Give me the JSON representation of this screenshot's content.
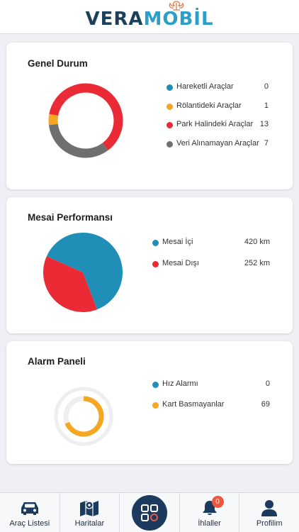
{
  "header": {
    "logo_part1": "VERA",
    "logo_part2": "MOBİL"
  },
  "general_status": {
    "title": "Genel Durum",
    "items": [
      {
        "label": "Hareketli Araçlar",
        "value": "0",
        "color": "#1f8fb8"
      },
      {
        "label": "Rölantideki Araçlar",
        "value": "1",
        "color": "#f5a623"
      },
      {
        "label": "Park Halindeki Araçlar",
        "value": "13",
        "color": "#ea2b36"
      },
      {
        "label": "Veri Alınamayan Araçlar",
        "value": "7",
        "color": "#6f6f6f"
      }
    ]
  },
  "shift_performance": {
    "title": "Mesai Performansı",
    "items": [
      {
        "label": "Mesai İçi",
        "value": "420 km",
        "color": "#1f8fb8"
      },
      {
        "label": "Mesai Dışı",
        "value": "252 km",
        "color": "#ea2b36"
      }
    ]
  },
  "alarm_panel": {
    "title": "Alarm Paneli",
    "items": [
      {
        "label": "Hız Alarmı",
        "value": "0",
        "color": "#1f8fb8"
      },
      {
        "label": "Kart Basmayanlar",
        "value": "69",
        "color": "#f5a623"
      }
    ]
  },
  "chart_data": [
    {
      "type": "pie",
      "variant": "donut",
      "categories": [
        "Hareketli Araçlar",
        "Rölantideki Araçlar",
        "Park Halindeki Araçlar",
        "Veri Alınamayan Araçlar"
      ],
      "values": [
        0,
        1,
        13,
        7
      ],
      "colors": [
        "#1f8fb8",
        "#f5a623",
        "#ea2b36",
        "#6f6f6f"
      ]
    },
    {
      "type": "pie",
      "categories": [
        "Mesai İçi",
        "Mesai Dışı"
      ],
      "values": [
        420,
        252
      ],
      "colors": [
        "#1f8fb8",
        "#ea2b36"
      ]
    },
    {
      "type": "radial-bar",
      "categories": [
        "Hız Alarmı",
        "Kart Basmayanlar"
      ],
      "values": [
        0,
        69
      ],
      "colors": [
        "#1f8fb8",
        "#f5a623"
      ]
    }
  ],
  "tabbar": {
    "items": [
      {
        "label": "Araç Listesi",
        "icon": "car-icon"
      },
      {
        "label": "Haritalar",
        "icon": "map-icon"
      },
      {
        "label": "",
        "icon": "grid-menu-icon"
      },
      {
        "label": "İhlaller",
        "icon": "bell-icon",
        "badge": "0"
      },
      {
        "label": "Profilim",
        "icon": "user-icon"
      }
    ]
  }
}
